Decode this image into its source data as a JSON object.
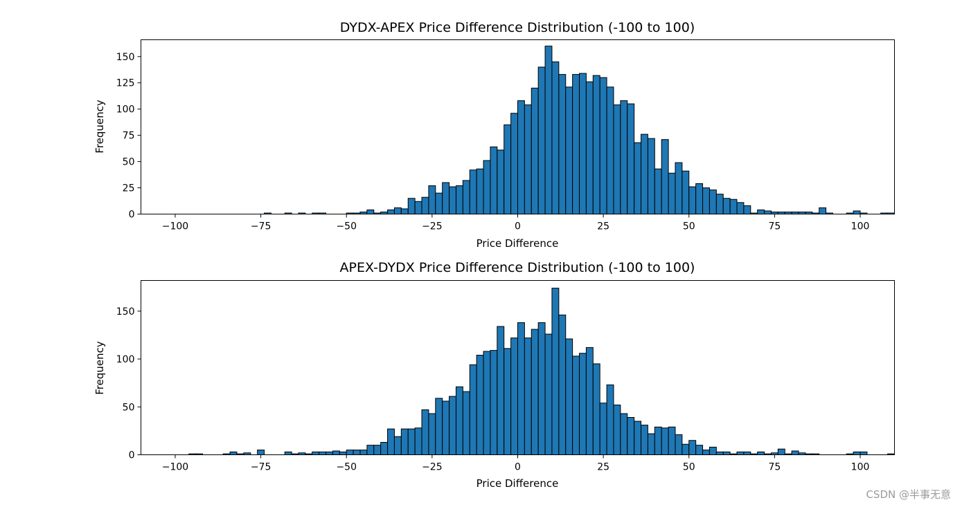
{
  "watermark": "CSDN @半事无意",
  "chart_data": [
    {
      "type": "bar",
      "title": "DYDX-APEX Price Difference Distribution (-100 to 100)",
      "xlabel": "Price Difference",
      "ylabel": "Frequency",
      "xlim": [
        -110,
        110
      ],
      "ylim": [
        0,
        166
      ],
      "xticks": [
        -100,
        -75,
        -50,
        -25,
        0,
        25,
        50,
        75,
        100
      ],
      "xtick_labels": [
        "−100",
        "−75",
        "−50",
        "−25",
        "0",
        "25",
        "50",
        "75",
        "100"
      ],
      "yticks": [
        0,
        25,
        50,
        75,
        100,
        125,
        150
      ],
      "yticks_labels": [
        "0",
        "25",
        "50",
        "75",
        "100",
        "125",
        "150"
      ],
      "bin_start": -100,
      "bin_width": 2,
      "values": [
        0,
        0,
        0,
        0,
        0,
        0,
        0,
        0,
        0,
        0,
        0,
        0,
        0,
        1,
        0,
        0,
        1,
        0,
        1,
        0,
        1,
        1,
        0,
        0,
        0,
        1,
        1,
        2,
        4,
        1,
        2,
        4,
        6,
        5,
        15,
        12,
        16,
        27,
        20,
        30,
        26,
        27,
        32,
        42,
        43,
        51,
        64,
        61,
        85,
        96,
        108,
        104,
        120,
        140,
        160,
        145,
        133,
        121,
        133,
        134,
        126,
        132,
        130,
        121,
        104,
        108,
        105,
        68,
        76,
        72,
        43,
        71,
        39,
        49,
        41,
        26,
        29,
        25,
        23,
        19,
        15,
        14,
        11,
        8,
        1,
        4,
        3,
        2,
        2,
        2,
        2,
        2,
        2,
        1,
        6,
        1,
        0,
        0,
        1,
        3,
        1,
        0,
        0,
        1,
        1
      ]
    },
    {
      "type": "bar",
      "title": "APEX-DYDX Price Difference Distribution (-100 to 100)",
      "xlabel": "Price Difference",
      "ylabel": "Frequency",
      "xlim": [
        -110,
        110
      ],
      "ylim": [
        0,
        182
      ],
      "xticks": [
        -100,
        -75,
        -50,
        -25,
        0,
        25,
        50,
        75,
        100
      ],
      "xtick_labels": [
        "−100",
        "−75",
        "−50",
        "−25",
        "0",
        "25",
        "50",
        "75",
        "100"
      ],
      "yticks": [
        0,
        50,
        100,
        150
      ],
      "yticks_labels": [
        "0",
        "50",
        "100",
        "150"
      ],
      "bin_start": -100,
      "bin_width": 2,
      "values": [
        0,
        0,
        1,
        1,
        0,
        0,
        0,
        1,
        3,
        1,
        2,
        0,
        5,
        0,
        0,
        0,
        3,
        1,
        2,
        1,
        3,
        3,
        3,
        4,
        3,
        5,
        5,
        5,
        10,
        10,
        13,
        27,
        19,
        27,
        27,
        28,
        47,
        43,
        59,
        56,
        61,
        71,
        66,
        94,
        104,
        108,
        109,
        134,
        111,
        122,
        138,
        122,
        131,
        138,
        126,
        174,
        146,
        121,
        103,
        106,
        112,
        95,
        54,
        73,
        52,
        43,
        39,
        35,
        31,
        22,
        29,
        28,
        29,
        21,
        11,
        15,
        10,
        5,
        8,
        3,
        3,
        1,
        3,
        3,
        1,
        3,
        1,
        2,
        6,
        1,
        4,
        2,
        1,
        1,
        0,
        0,
        0,
        0,
        1,
        3,
        3,
        0,
        0,
        0,
        1
      ]
    }
  ]
}
